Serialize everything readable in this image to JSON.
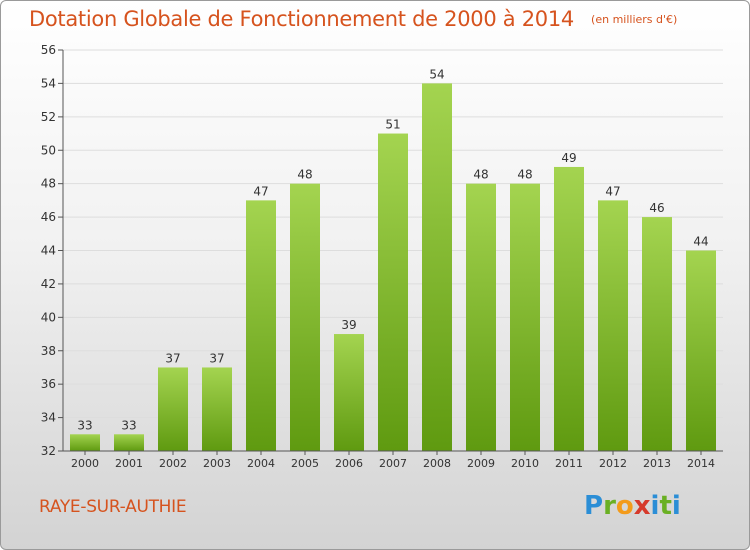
{
  "header": {
    "title": "Dotation Globale de Fonctionnement de 2000 à 2014",
    "unit": "(en milliers d'€)"
  },
  "footer": {
    "commune": "RAYE-SUR-AUTHIE",
    "logo": "Proxiti"
  },
  "colors": {
    "accent": "#d6531e",
    "bar_light": "#a4d450",
    "bar_dark": "#5f9a10"
  },
  "chart_data": {
    "type": "bar",
    "categories": [
      "2000",
      "2001",
      "2002",
      "2003",
      "2004",
      "2005",
      "2006",
      "2007",
      "2008",
      "2009",
      "2010",
      "2011",
      "2012",
      "2013",
      "2014"
    ],
    "values": [
      33,
      33,
      37,
      37,
      47,
      48,
      39,
      51,
      54,
      48,
      48,
      49,
      47,
      46,
      44
    ],
    "title": "Dotation Globale de Fonctionnement de 2000 à 2014",
    "ylim": [
      32,
      56
    ],
    "yticks": [
      32,
      34,
      36,
      38,
      40,
      42,
      44,
      46,
      48,
      50,
      52,
      54,
      56
    ],
    "grid": true
  }
}
